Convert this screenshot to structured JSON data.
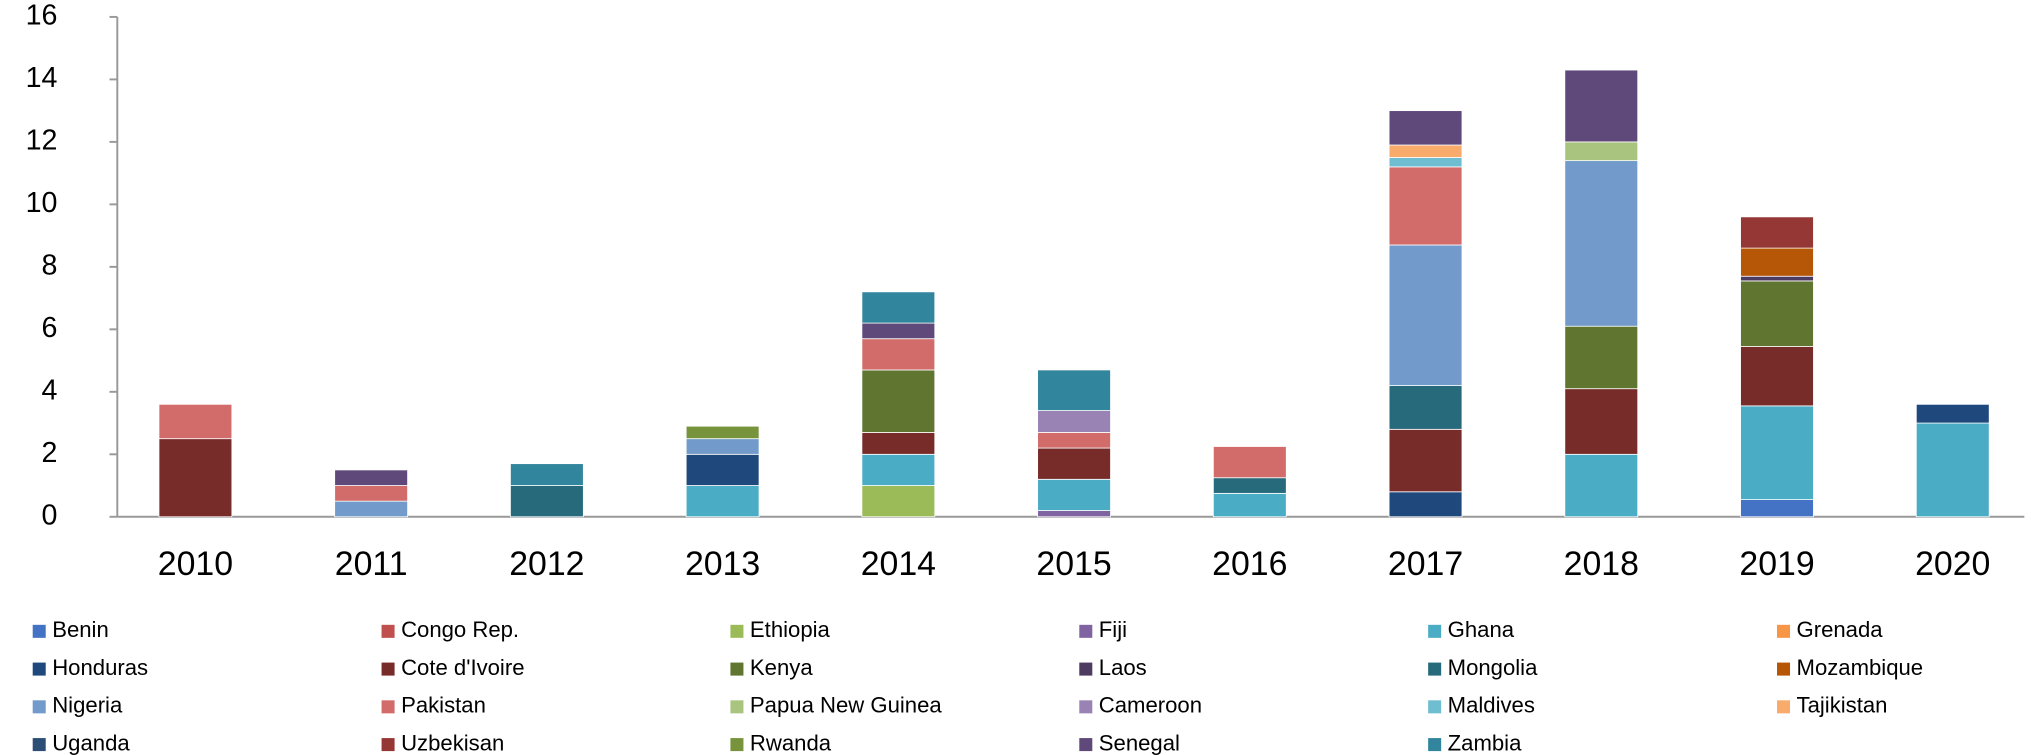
{
  "chart_data": {
    "type": "stacked_bar",
    "categories": [
      "2010",
      "2011",
      "2012",
      "2013",
      "2014",
      "2015",
      "2016",
      "2017",
      "2018",
      "2019",
      "2020"
    ],
    "ylim": [
      0,
      16
    ],
    "yticks": [
      0,
      2,
      4,
      6,
      8,
      10,
      12,
      14,
      16
    ],
    "grid": false,
    "legend": "bottom",
    "series": [
      {
        "name": "Benin",
        "color": "#4472c4",
        "values": [
          null,
          null,
          null,
          null,
          null,
          null,
          null,
          null,
          null,
          0.55,
          null
        ]
      },
      {
        "name": "Congo Rep.",
        "color": "#c0504d",
        "values": [
          null,
          null,
          null,
          null,
          null,
          null,
          null,
          null,
          null,
          null,
          null
        ]
      },
      {
        "name": "Ethiopia",
        "color": "#9bbb59",
        "values": [
          null,
          null,
          null,
          null,
          1,
          null,
          null,
          null,
          null,
          null,
          null
        ]
      },
      {
        "name": "Fiji",
        "color": "#8064a2",
        "values": [
          null,
          null,
          null,
          null,
          null,
          0.2,
          null,
          null,
          null,
          null,
          null
        ]
      },
      {
        "name": "Ghana",
        "color": "#4bacc6",
        "values": [
          null,
          null,
          null,
          1,
          1,
          1,
          0.75,
          null,
          2,
          3,
          3
        ]
      },
      {
        "name": "Grenada",
        "color": "#f79646",
        "values": [
          null,
          null,
          null,
          null,
          null,
          null,
          null,
          null,
          null,
          null,
          null
        ]
      },
      {
        "name": "Honduras",
        "color": "#1f497d",
        "values": [
          null,
          null,
          null,
          1,
          null,
          null,
          null,
          0.8,
          null,
          null,
          0.6
        ]
      },
      {
        "name": "Cote d'Ivoire",
        "color": "#772c2a",
        "values": [
          2.5,
          null,
          null,
          null,
          0.7,
          1,
          null,
          2,
          2.1,
          1.9,
          null
        ]
      },
      {
        "name": "Kenya",
        "color": "#5f7530",
        "values": [
          null,
          null,
          null,
          null,
          2,
          null,
          null,
          null,
          2,
          2.1,
          null
        ]
      },
      {
        "name": "Laos",
        "color": "#4d3b62",
        "values": [
          null,
          null,
          null,
          null,
          null,
          null,
          null,
          null,
          null,
          0.15,
          null
        ]
      },
      {
        "name": "Mongolia",
        "color": "#276a7c",
        "values": [
          null,
          null,
          1,
          null,
          null,
          null,
          0.5,
          1.4,
          null,
          null,
          null
        ]
      },
      {
        "name": "Mozambique",
        "color": "#b65708",
        "values": [
          null,
          null,
          null,
          null,
          null,
          null,
          null,
          null,
          null,
          0.9,
          null
        ]
      },
      {
        "name": "Nigeria",
        "color": "#729aca",
        "values": [
          null,
          0.5,
          null,
          0.5,
          null,
          null,
          null,
          4.5,
          5.3,
          null,
          null
        ]
      },
      {
        "name": "Pakistan",
        "color": "#d16c6a",
        "values": [
          1.1,
          0.5,
          null,
          null,
          1,
          0.5,
          1,
          2.5,
          null,
          null,
          null
        ]
      },
      {
        "name": "Papua New Guinea",
        "color": "#a9c47f",
        "values": [
          null,
          null,
          null,
          null,
          null,
          null,
          null,
          null,
          0.6,
          null,
          null
        ]
      },
      {
        "name": "Cameroon",
        "color": "#9983b5",
        "values": [
          null,
          null,
          null,
          null,
          null,
          0.7,
          null,
          null,
          null,
          null,
          null
        ]
      },
      {
        "name": "Maldives",
        "color": "#6fbdd1",
        "values": [
          null,
          null,
          null,
          null,
          null,
          null,
          null,
          0.3,
          null,
          null,
          null
        ]
      },
      {
        "name": "Tajikistan",
        "color": "#f9ab6b",
        "values": [
          null,
          null,
          null,
          null,
          null,
          null,
          null,
          0.4,
          null,
          null,
          null
        ]
      },
      {
        "name": "Uganda",
        "color": "#2c4d75",
        "values": [
          null,
          null,
          null,
          null,
          null,
          null,
          null,
          null,
          null,
          null,
          null
        ]
      },
      {
        "name": "Uzbekisan",
        "color": "#953735",
        "values": [
          null,
          null,
          null,
          null,
          null,
          null,
          null,
          null,
          null,
          1,
          null
        ]
      },
      {
        "name": "Rwanda",
        "color": "#77933c",
        "values": [
          null,
          null,
          null,
          0.4,
          null,
          null,
          null,
          null,
          null,
          null,
          null
        ]
      },
      {
        "name": "Senegal",
        "color": "#5f497a",
        "values": [
          null,
          0.5,
          null,
          null,
          0.5,
          null,
          null,
          1.1,
          2.3,
          null,
          null
        ]
      },
      {
        "name": "Zambia",
        "color": "#31859c",
        "values": [
          null,
          null,
          0.7,
          null,
          1,
          1.3,
          null,
          null,
          null,
          null,
          null
        ]
      }
    ]
  }
}
